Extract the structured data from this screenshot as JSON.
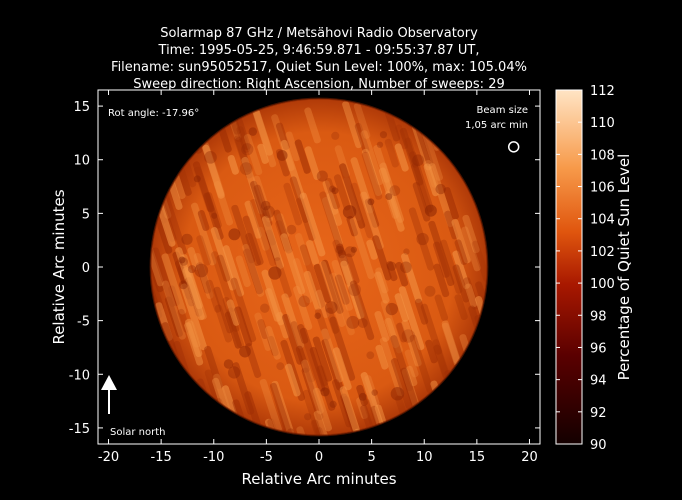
{
  "chart_data": {
    "type": "heatmap",
    "title_lines": [
      "Solarmap 87 GHz / Metsähovi Radio Observatory",
      "Time: 1995-05-25,  9:46:59.871 - 09:55:37.87 UT,",
      "Filename: sun95052517, Quiet Sun Level: 100%, max: 105.04%",
      "Sweep direction: Right Ascension, Number of sweeps: 29"
    ],
    "xlabel": "Relative Arc minutes",
    "ylabel": "Relative Arc minutes",
    "colorbar_label": "Percentage of Quiet Sun Level",
    "xlim": [
      -21,
      21
    ],
    "ylim": [
      -16.5,
      16.5
    ],
    "x_ticks": [
      -20,
      -15,
      -10,
      -5,
      0,
      5,
      10,
      15,
      20
    ],
    "y_ticks": [
      -15,
      -10,
      -5,
      0,
      5,
      10,
      15
    ],
    "colorbar_range": [
      90,
      112
    ],
    "colorbar_ticks": [
      90,
      92,
      94,
      96,
      98,
      100,
      102,
      104,
      106,
      108,
      110,
      112
    ],
    "disk": {
      "center": [
        0,
        0
      ],
      "radius": 16,
      "typical_level": 101,
      "max_level": 105.04
    },
    "beam": {
      "x": 18.5,
      "y": 11.2,
      "label_lines": [
        "Beam size",
        "1,05 arc min"
      ]
    },
    "annotations": {
      "rot_angle": "Rot angle: -17.96°",
      "solar_north": "Solar north"
    },
    "colors": {
      "background": "#000000",
      "foreground": "#ffffff",
      "disk_base": "#d95b12"
    }
  }
}
